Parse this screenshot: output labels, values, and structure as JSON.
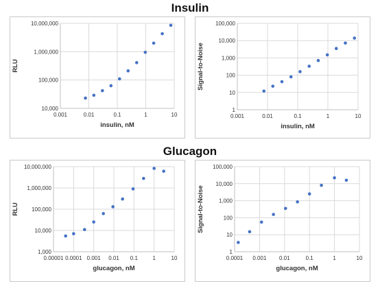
{
  "sections": {
    "insulin_title": "Insulin",
    "glucagon_title": "Glucagon"
  },
  "colors": {
    "marker": "#4472c4",
    "grid": "#d9d9d9",
    "frame": "#c8c8c8"
  },
  "chart_data": [
    {
      "type": "scatter",
      "title": "",
      "xlabel": "insulin, nM",
      "ylabel": "RLU",
      "xscale": "log",
      "yscale": "log",
      "xlim": [
        0.001,
        10
      ],
      "ylim": [
        10000,
        10000000
      ],
      "xticks": [
        "0.001",
        "0.01",
        "0.1",
        "1",
        "10"
      ],
      "yticks": [
        "10,000",
        "100,000",
        "1,000,000",
        "10,000,000"
      ],
      "grid": true,
      "x": [
        0.0076,
        0.015,
        0.03,
        0.06,
        0.12,
        0.24,
        0.48,
        0.96,
        1.9,
        3.8,
        7.6
      ],
      "y": [
        23000,
        29000,
        42000,
        63000,
        110000,
        210000,
        410000,
        950000,
        2000000,
        4300000,
        8500000
      ]
    },
    {
      "type": "scatter",
      "title": "",
      "xlabel": "insulin, nM",
      "ylabel": "Signal-to-Noise",
      "xscale": "log",
      "yscale": "log",
      "xlim": [
        0.001,
        10
      ],
      "ylim": [
        1,
        100000
      ],
      "xticks": [
        "0.001",
        "0.01",
        "0.1",
        "1",
        "10"
      ],
      "yticks": [
        "1",
        "10",
        "100",
        "1,000",
        "10,000",
        "100,000"
      ],
      "grid": true,
      "x": [
        0.0076,
        0.015,
        0.03,
        0.06,
        0.12,
        0.24,
        0.48,
        0.96,
        1.9,
        3.8,
        7.6
      ],
      "y": [
        12,
        23,
        42,
        80,
        160,
        330,
        700,
        1500,
        3500,
        7200,
        14000
      ]
    },
    {
      "type": "scatter",
      "title": "",
      "xlabel": "glucagon, nM",
      "ylabel": "RLU",
      "xscale": "log",
      "yscale": "log",
      "xlim": [
        1e-05,
        10
      ],
      "ylim": [
        1000,
        10000000
      ],
      "xticks": [
        "0.00001",
        "0.0001",
        "0.001",
        "0.01",
        "0.1",
        "1",
        "10"
      ],
      "yticks": [
        "1,000",
        "10,000",
        "100,000",
        "1,000,000",
        "10,000,000"
      ],
      "grid": true,
      "x": [
        4e-05,
        0.0001,
        0.00035,
        0.001,
        0.003,
        0.009,
        0.027,
        0.09,
        0.3,
        1,
        3
      ],
      "y": [
        5500,
        7000,
        11000,
        25000,
        62000,
        130000,
        300000,
        900000,
        2800000,
        8300000,
        6100000
      ]
    },
    {
      "type": "scatter",
      "title": "",
      "xlabel": "glucagon, nM",
      "ylabel": "Signal-to-Noise",
      "xscale": "log",
      "yscale": "log",
      "xlim": [
        0.0001,
        10
      ],
      "ylim": [
        1,
        100000
      ],
      "xticks": [
        "0.0001",
        "0.001",
        "0.01",
        "0.1",
        "1",
        "10"
      ],
      "yticks": [
        "1",
        "10",
        "100",
        "1,000",
        "10,000",
        "100,000"
      ],
      "grid": true,
      "x": [
        0.00014,
        0.0004,
        0.0012,
        0.0036,
        0.011,
        0.033,
        0.1,
        0.3,
        1,
        3
      ],
      "y": [
        3.5,
        15,
        55,
        155,
        350,
        850,
        2500,
        8000,
        22000,
        16000
      ]
    }
  ]
}
